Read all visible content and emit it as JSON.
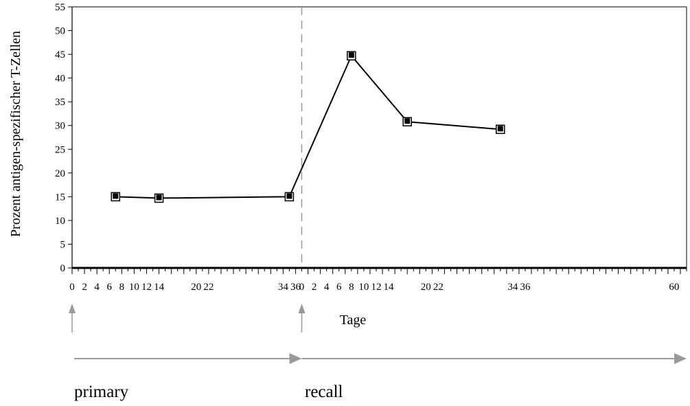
{
  "chart_data": {
    "type": "line",
    "title": "",
    "ylabel": "Prozent antigen-spezifischer T-Zellen",
    "xlabel": "Tage",
    "ylim": [
      0,
      55
    ],
    "yticks": [
      0,
      5,
      10,
      15,
      20,
      25,
      30,
      35,
      40,
      45,
      50,
      55
    ],
    "xticks_labels": [
      {
        "label": "0",
        "x": 0
      },
      {
        "label": "2",
        "x": 2
      },
      {
        "label": "4",
        "x": 4
      },
      {
        "label": "6",
        "x": 6
      },
      {
        "label": "8",
        "x": 8
      },
      {
        "label": "10",
        "x": 10
      },
      {
        "label": "12",
        "x": 12
      },
      {
        "label": "14",
        "x": 14
      },
      {
        "label": "20",
        "x": 20
      },
      {
        "label": "22",
        "x": 22
      },
      {
        "label": "34",
        "x": 34
      },
      {
        "label": "36",
        "x": 36
      },
      {
        "label": "0",
        "x": 37
      },
      {
        "label": "2",
        "x": 39
      },
      {
        "label": "4",
        "x": 41
      },
      {
        "label": "6",
        "x": 43
      },
      {
        "label": "8",
        "x": 45
      },
      {
        "label": "10",
        "x": 47
      },
      {
        "label": "12",
        "x": 49
      },
      {
        "label": "14",
        "x": 51
      },
      {
        "label": "20",
        "x": 57
      },
      {
        "label": "22",
        "x": 59
      },
      {
        "label": "34",
        "x": 71
      },
      {
        "label": "36",
        "x": 73
      },
      {
        "label": "60",
        "x": 97
      }
    ],
    "recall_start_x": 37,
    "series": [
      {
        "x": [
          7,
          14,
          35,
          45,
          54,
          69
        ],
        "values": [
          15,
          14.7,
          15,
          44.7,
          30.8,
          29.2
        ]
      }
    ],
    "grid": false,
    "legend": "none"
  },
  "phases": {
    "primary": "primary",
    "recall": "recall"
  },
  "colors": {
    "line": "#000000",
    "axis": "#000000",
    "marker_fill": "#ffffff",
    "marker_inner": "#000000",
    "divider": "#999999",
    "arrow": "#999999"
  }
}
